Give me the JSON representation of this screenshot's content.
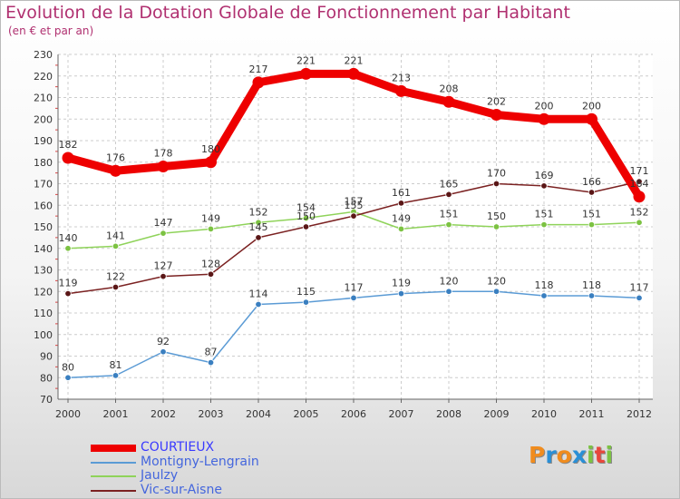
{
  "header": {
    "title": "Evolution de la Dotation Globale de Fonctionnement par Habitant",
    "subtitle": "(en € et par an)"
  },
  "brand": {
    "text": "Proxiti",
    "colors": [
      "#f08c1e",
      "#2a8fd6",
      "#f08c1e",
      "#2a8fd6",
      "#7cc242",
      "#e8473c",
      "#7cc242"
    ]
  },
  "chart_data": {
    "type": "line",
    "title": "Evolution de la Dotation Globale de Fonctionnement par Habitant",
    "subtitle": "(en € et par an)",
    "xlabel": "",
    "ylabel": "",
    "ylim": [
      70,
      230
    ],
    "ytick_step": 10,
    "grid": "horizontal dashed",
    "legend_position": "bottom-left",
    "x": [
      "2000",
      "2001",
      "2002",
      "2003",
      "2004",
      "2005",
      "2006",
      "2007",
      "2008",
      "2009",
      "2010",
      "2011",
      "2012"
    ],
    "series": [
      {
        "name": "COURTIEUX",
        "color": "#ee0000",
        "emphasis": true,
        "values": [
          182,
          176,
          178,
          180,
          217,
          221,
          221,
          213,
          208,
          202,
          200,
          200,
          164
        ]
      },
      {
        "name": "Montigny-Lengrain",
        "color": "#5b9bd5",
        "marker": "#3a7fc0",
        "values": [
          80,
          81,
          92,
          87,
          114,
          115,
          117,
          119,
          120,
          120,
          118,
          118,
          117
        ]
      },
      {
        "name": "Jaulzy",
        "color": "#8fd35a",
        "marker": "#7cc242",
        "values": [
          140,
          141,
          147,
          149,
          152,
          154,
          157,
          149,
          151,
          150,
          151,
          151,
          152
        ]
      },
      {
        "name": "Vic-sur-Aisne",
        "color": "#7b2222",
        "marker": "#5a1616",
        "values": [
          119,
          122,
          127,
          128,
          145,
          150,
          155,
          161,
          165,
          170,
          169,
          166,
          171
        ]
      }
    ]
  }
}
